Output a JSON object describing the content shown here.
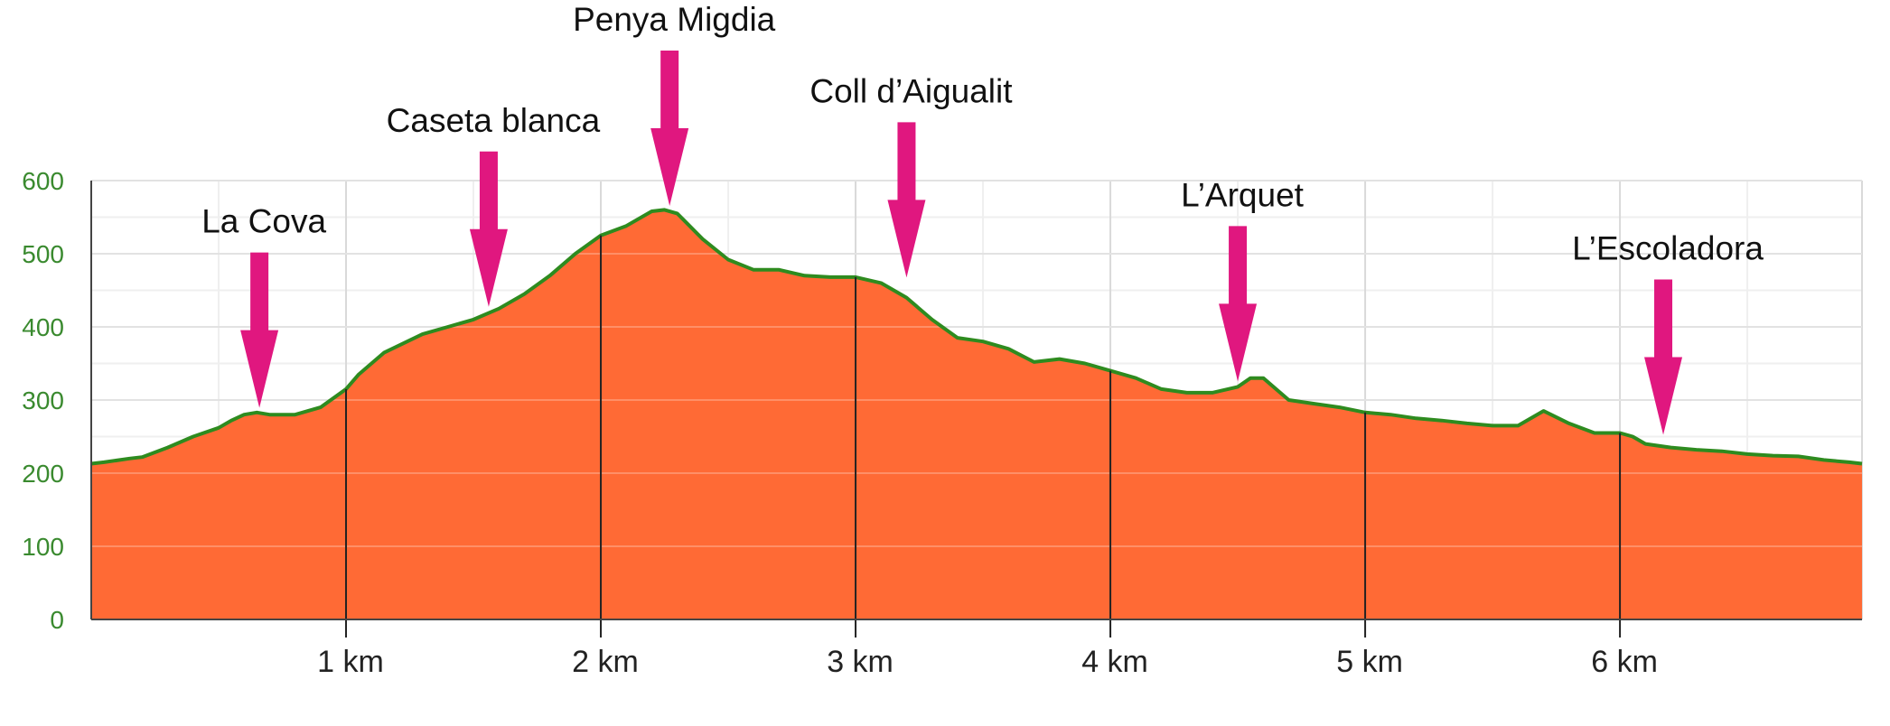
{
  "colors": {
    "fill": "#ff6a35",
    "line": "#2e8b1f",
    "arrow": "#e0177f",
    "grid_major": "#d9d9d9",
    "grid_minor": "#efefef",
    "ytick": "#3a8a2f",
    "axis": "#222222"
  },
  "chart_data": {
    "type": "area",
    "title": "",
    "xlabel": "",
    "ylabel": "",
    "xlim": [
      0,
      6.95
    ],
    "ylim": [
      0,
      600
    ],
    "grid": true,
    "x_ticks": [
      {
        "value": 1,
        "label": "1 km"
      },
      {
        "value": 2,
        "label": "2 km"
      },
      {
        "value": 3,
        "label": "3 km"
      },
      {
        "value": 4,
        "label": "4 km"
      },
      {
        "value": 5,
        "label": "5 km"
      },
      {
        "value": 6,
        "label": "6 km"
      }
    ],
    "y_ticks": [
      {
        "value": 0,
        "label": "0"
      },
      {
        "value": 100,
        "label": "100"
      },
      {
        "value": 200,
        "label": "200"
      },
      {
        "value": 300,
        "label": "300"
      },
      {
        "value": 400,
        "label": "400"
      },
      {
        "value": 500,
        "label": "500"
      },
      {
        "value": 600,
        "label": "600"
      }
    ],
    "series": [
      {
        "x": [
          0,
          0.05,
          0.15,
          0.2,
          0.3,
          0.4,
          0.5,
          0.55,
          0.6,
          0.65,
          0.7,
          0.8,
          0.9,
          1.0,
          1.05,
          1.15,
          1.3,
          1.4,
          1.5,
          1.6,
          1.7,
          1.8,
          1.9,
          2.0,
          2.1,
          2.2,
          2.25,
          2.3,
          2.4,
          2.5,
          2.6,
          2.7,
          2.8,
          2.9,
          3.0,
          3.1,
          3.2,
          3.3,
          3.4,
          3.5,
          3.6,
          3.7,
          3.8,
          3.9,
          4.0,
          4.1,
          4.2,
          4.3,
          4.4,
          4.5,
          4.55,
          4.6,
          4.7,
          4.8,
          4.9,
          5.0,
          5.1,
          5.2,
          5.3,
          5.4,
          5.5,
          5.6,
          5.7,
          5.8,
          5.9,
          6.0,
          6.05,
          6.1,
          6.2,
          6.3,
          6.4,
          6.5,
          6.6,
          6.7,
          6.8,
          6.9,
          6.95
        ],
        "y": [
          213,
          215,
          220,
          222,
          235,
          250,
          262,
          272,
          280,
          283,
          280,
          280,
          290,
          315,
          335,
          365,
          390,
          400,
          410,
          425,
          445,
          470,
          500,
          525,
          538,
          558,
          560,
          555,
          520,
          492,
          478,
          478,
          470,
          468,
          468,
          460,
          440,
          410,
          385,
          380,
          370,
          352,
          356,
          350,
          340,
          330,
          315,
          310,
          310,
          318,
          330,
          330,
          300,
          295,
          290,
          283,
          280,
          275,
          272,
          268,
          265,
          265,
          285,
          268,
          255,
          255,
          250,
          240,
          235,
          232,
          230,
          226,
          224,
          223,
          218,
          215,
          213
        ]
      }
    ],
    "annotations": [
      {
        "label": "La Cova",
        "x": 0.66,
        "y": 282
      },
      {
        "label": "Caseta blanca",
        "x": 1.56,
        "y": 420
      },
      {
        "label": "Penya Migdia",
        "x": 2.27,
        "y": 558
      },
      {
        "label": "Coll d’Aigualit",
        "x": 3.2,
        "y": 460
      },
      {
        "label": "L’Arquet",
        "x": 4.5,
        "y": 318
      },
      {
        "label": "L’Escoladora",
        "x": 6.17,
        "y": 245
      }
    ]
  }
}
